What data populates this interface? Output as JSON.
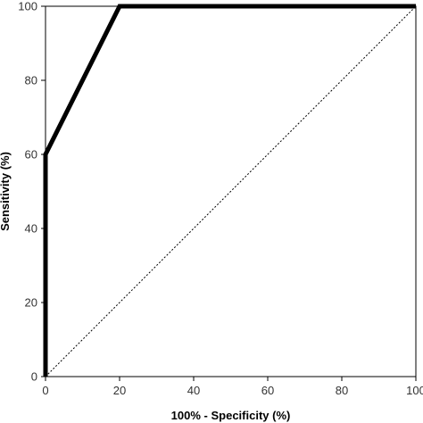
{
  "chart_data": {
    "type": "line",
    "title": "",
    "xlabel": "100% - Specificity (%)",
    "ylabel": "Sensitivity (%)",
    "xlim": [
      0,
      100
    ],
    "ylim": [
      0,
      100
    ],
    "xticks": [
      0,
      20,
      40,
      60,
      80,
      100
    ],
    "yticks": [
      0,
      20,
      40,
      60,
      80,
      100
    ],
    "grid": false,
    "legend": "none",
    "series": [
      {
        "style": "solid-thick",
        "color": "#000000",
        "points": [
          [
            0,
            0
          ],
          [
            0,
            60
          ],
          [
            20,
            100
          ],
          [
            100,
            100
          ]
        ]
      },
      {
        "style": "dotted-reference",
        "color": "#000000",
        "points": [
          [
            0,
            0
          ],
          [
            100,
            100
          ]
        ]
      }
    ]
  }
}
